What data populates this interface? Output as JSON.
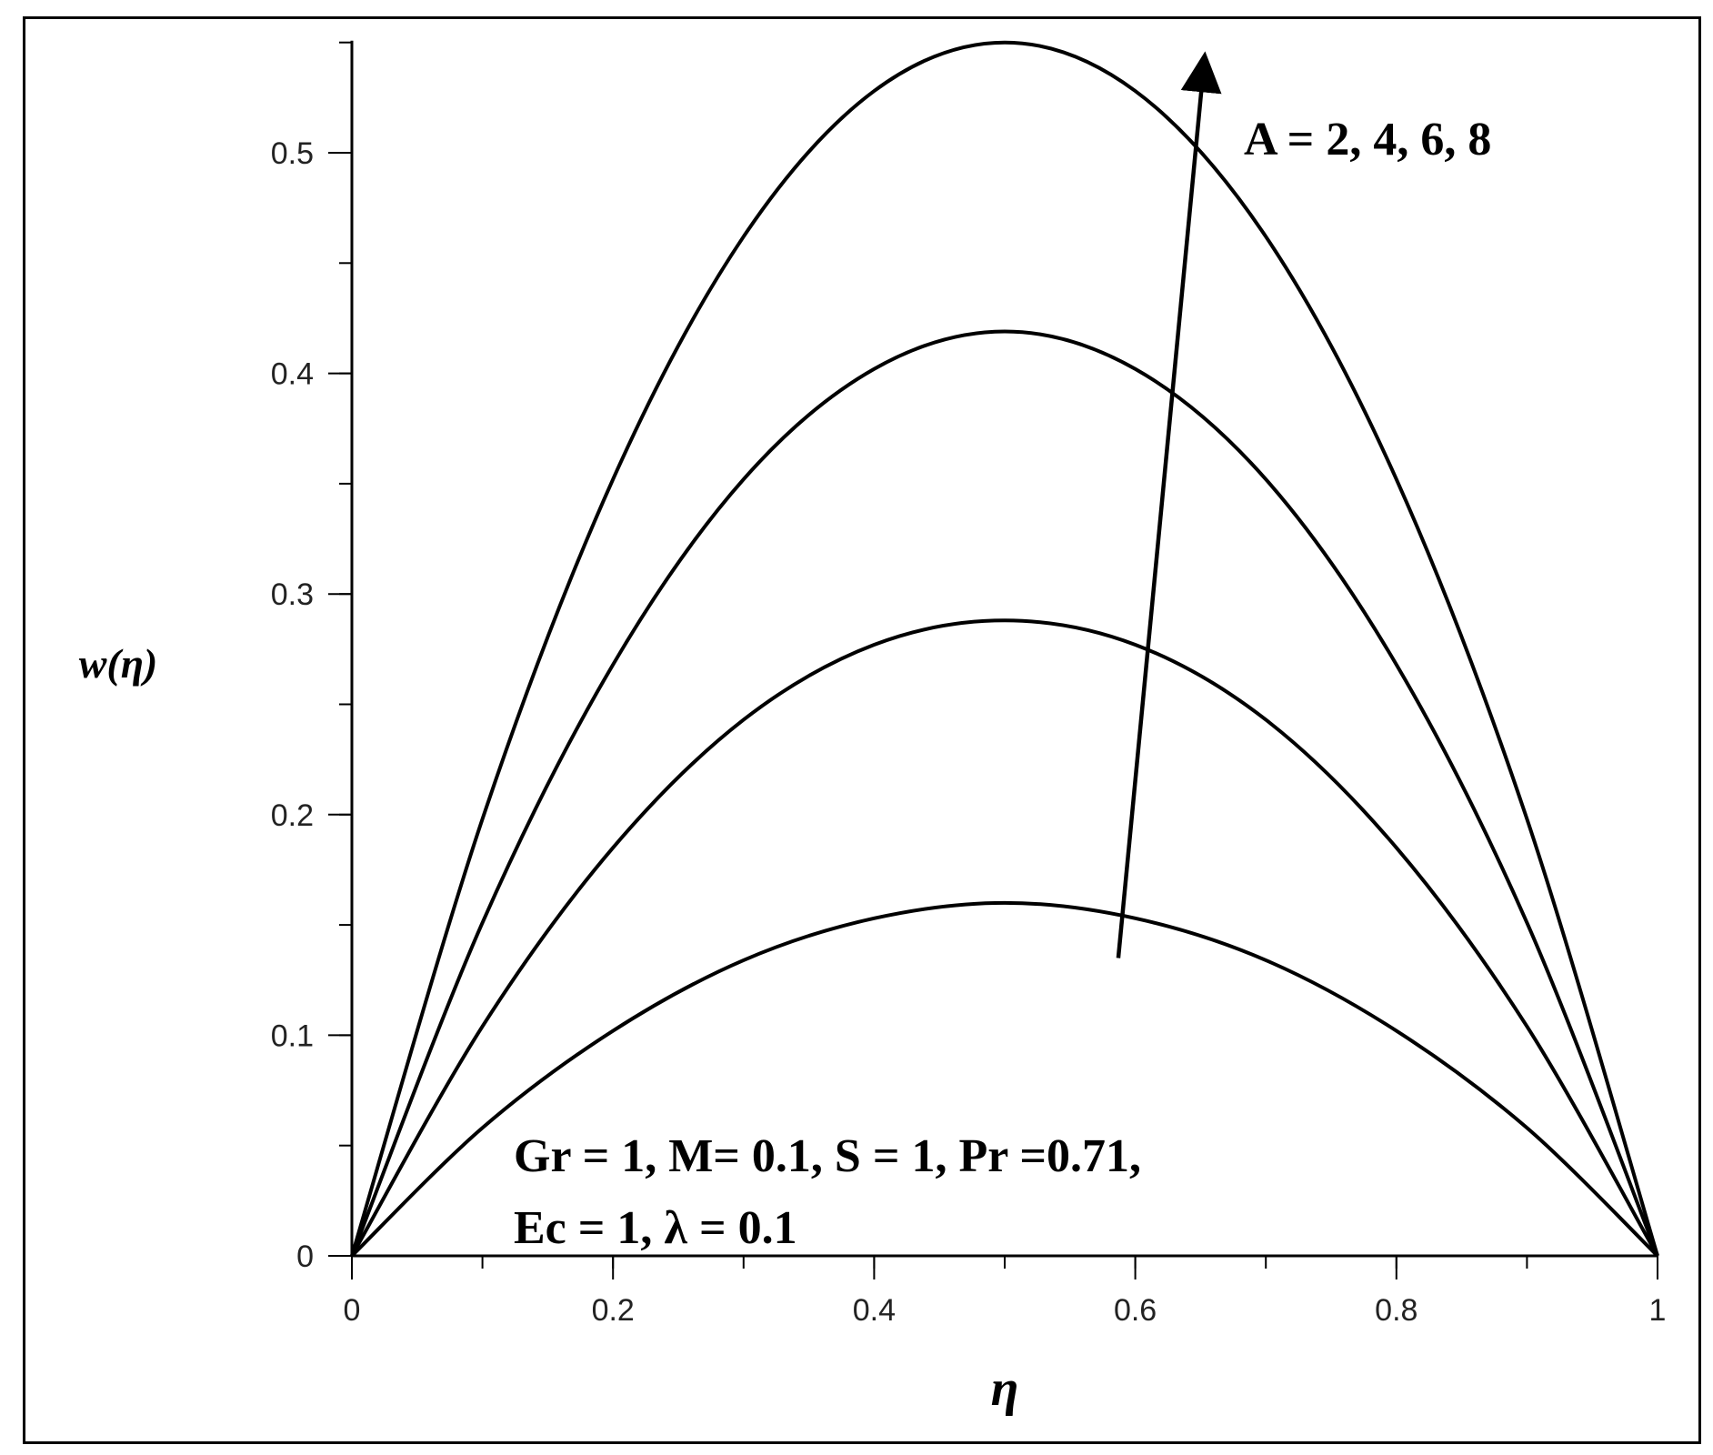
{
  "chart_data": {
    "type": "line",
    "xlabel": "η",
    "ylabel": "w(η)",
    "xlim": [
      0,
      1
    ],
    "ylim": [
      0,
      0.55
    ],
    "x_ticks": [
      {
        "value": 0,
        "label": "0"
      },
      {
        "value": 0.2,
        "label": "0.2"
      },
      {
        "value": 0.4,
        "label": "0.4"
      },
      {
        "value": 0.6,
        "label": "0.6"
      },
      {
        "value": 0.8,
        "label": "0.8"
      },
      {
        "value": 1,
        "label": "1"
      }
    ],
    "x_minor_step": 0.1,
    "y_ticks": [
      {
        "value": 0,
        "label": "0"
      },
      {
        "value": 0.1,
        "label": "0.1"
      },
      {
        "value": 0.2,
        "label": "0.2"
      },
      {
        "value": 0.3,
        "label": "0.3"
      },
      {
        "value": 0.4,
        "label": "0.4"
      },
      {
        "value": 0.5,
        "label": "0.5"
      }
    ],
    "y_minor_step": 0.05,
    "grid": false,
    "legend": "none",
    "x": [
      0,
      0.1,
      0.2,
      0.3,
      0.4,
      0.5,
      0.6,
      0.7,
      0.8,
      0.9,
      1.0
    ],
    "series": [
      {
        "values": [
          0,
          0.058,
          0.102,
          0.134,
          0.153,
          0.16,
          0.153,
          0.134,
          0.102,
          0.058,
          0
        ]
      },
      {
        "values": [
          0,
          0.104,
          0.185,
          0.243,
          0.277,
          0.288,
          0.277,
          0.243,
          0.185,
          0.104,
          0
        ]
      },
      {
        "values": [
          0,
          0.151,
          0.268,
          0.352,
          0.402,
          0.419,
          0.402,
          0.352,
          0.268,
          0.151,
          0
        ]
      },
      {
        "values": [
          0,
          0.198,
          0.352,
          0.462,
          0.528,
          0.55,
          0.528,
          0.462,
          0.352,
          0.198,
          0
        ]
      }
    ],
    "arrow": {
      "from": {
        "x": 0.587,
        "y": 0.135
      },
      "to": {
        "x": 0.652,
        "y": 0.545
      }
    },
    "annotations": {
      "arrow_label": "A = 2, 4, 6, 8",
      "params_line1": "Gr = 1, M= 0.1, S = 1, Pr =0.71,",
      "params_line2": "Ec = 1, λ = 0.1"
    }
  }
}
